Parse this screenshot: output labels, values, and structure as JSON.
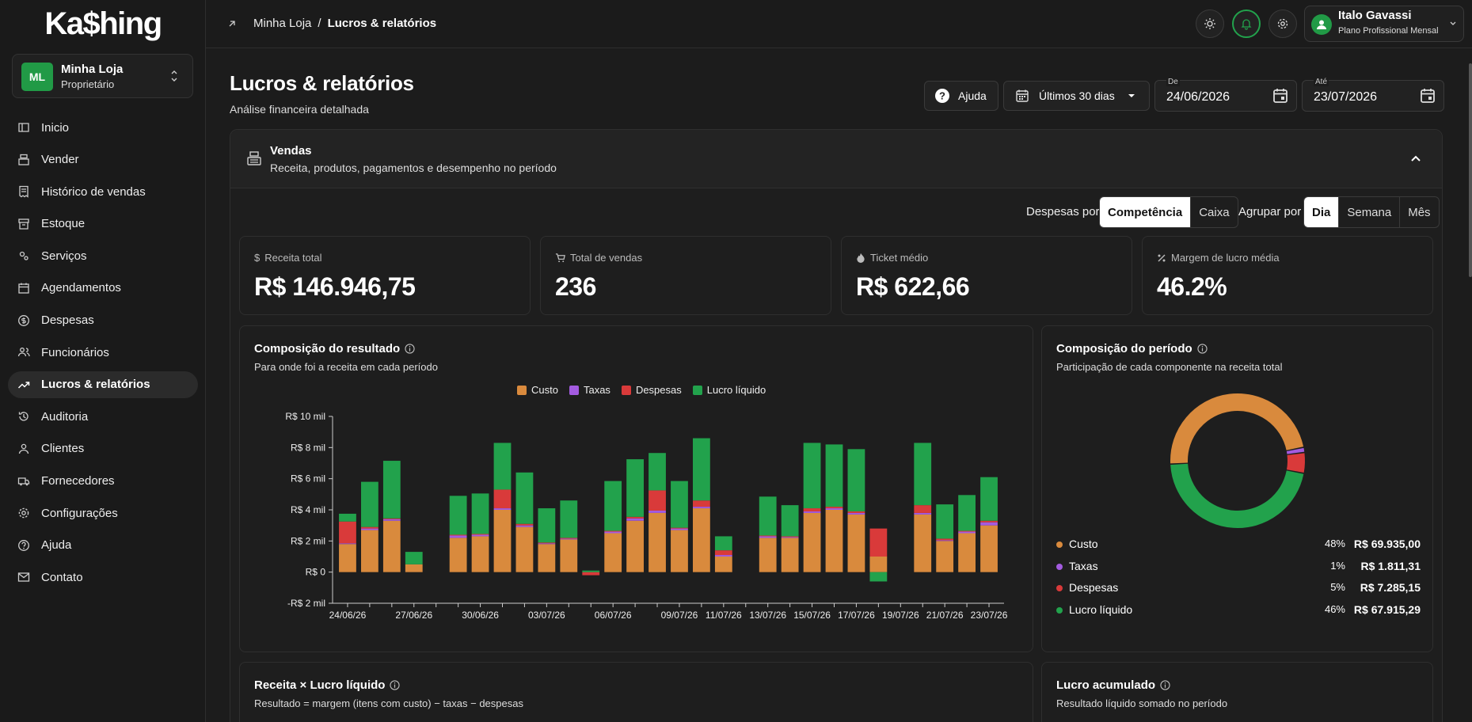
{
  "sidebar": {
    "logo": "Ka$hing",
    "store": {
      "initials": "ML",
      "name": "Minha Loja",
      "role": "Proprietário"
    },
    "items": [
      {
        "label": "Inicio",
        "icon": "home-icon",
        "active": false
      },
      {
        "label": "Vender",
        "icon": "register-icon",
        "active": false
      },
      {
        "label": "Histórico de vendas",
        "icon": "receipt-icon",
        "active": false
      },
      {
        "label": "Estoque",
        "icon": "archive-icon",
        "active": false
      },
      {
        "label": "Serviços",
        "icon": "gears-icon",
        "active": false
      },
      {
        "label": "Agendamentos",
        "icon": "calendar-icon",
        "active": false
      },
      {
        "label": "Despesas",
        "icon": "dollar-circle-icon",
        "active": false
      },
      {
        "label": "Funcionários",
        "icon": "users-icon",
        "active": false
      },
      {
        "label": "Lucros & relatórios",
        "icon": "trend-up-icon",
        "active": true
      },
      {
        "label": "Auditoria",
        "icon": "history-icon",
        "active": false
      },
      {
        "label": "Clientes",
        "icon": "people-icon",
        "active": false
      },
      {
        "label": "Fornecedores",
        "icon": "truck-icon",
        "active": false
      },
      {
        "label": "Configurações",
        "icon": "gear-icon",
        "active": false
      },
      {
        "label": "Ajuda",
        "icon": "help-icon",
        "active": false
      },
      {
        "label": "Contato",
        "icon": "mail-icon",
        "active": false
      }
    ]
  },
  "topbar": {
    "breadcrumb_root": "Minha Loja",
    "breadcrumb_sep": "/",
    "breadcrumb_current": "Lucros & relatórios",
    "user_name": "Italo Gavassi",
    "user_plan": "Plano Profissional Mensal"
  },
  "header": {
    "title": "Lucros & relatórios",
    "subtitle": "Análise financeira detalhada",
    "help_label": "Ajuda",
    "period_label": "Últimos 30 dias",
    "from_label": "De",
    "from_value": "24/06/2026",
    "to_label": "Até",
    "to_value": "23/07/2026"
  },
  "sales": {
    "title": "Vendas",
    "subtitle": "Receita, produtos, pagamentos e desempenho no período",
    "expenses_by_label": "Despesas por",
    "expenses_by_options": [
      "Competência",
      "Caixa"
    ],
    "group_by_label": "Agrupar por",
    "group_by_options": [
      "Dia",
      "Semana",
      "Mês"
    ],
    "kpis": [
      {
        "label": "Receita total",
        "value": "R$ 146.946,75",
        "icon": "dollar-icon"
      },
      {
        "label": "Total de vendas",
        "value": "236",
        "icon": "cart-icon"
      },
      {
        "label": "Ticket médio",
        "value": "R$ 622,66",
        "icon": "flame-icon"
      },
      {
        "label": "Margem de lucro média",
        "value": "46.2%",
        "icon": "percent-icon"
      }
    ]
  },
  "result_chart": {
    "title": "Composição do resultado",
    "subtitle": "Para onde foi a receita em cada período"
  },
  "period_comp": {
    "title": "Composição do período",
    "subtitle": "Participação de cada componente na receita total",
    "rows": [
      {
        "name": "Custo",
        "pct": "48%",
        "value": "R$ 69.935,00",
        "color": "#d98a3d"
      },
      {
        "name": "Taxas",
        "pct": "1%",
        "value": "R$ 1.811,31",
        "color": "#a35be0"
      },
      {
        "name": "Despesas",
        "pct": "5%",
        "value": "R$ 7.285,15",
        "color": "#d93a3a"
      },
      {
        "name": "Lucro líquido",
        "pct": "46%",
        "value": "R$ 67.915,29",
        "color": "#22a24c"
      }
    ]
  },
  "bottom_cards": {
    "left_title": "Receita × Lucro líquido",
    "left_sub": "Resultado = margem (itens com custo) − taxas − despesas",
    "right_title": "Lucro acumulado",
    "right_sub": "Resultado líquido somado no período"
  },
  "chart_data": [
    {
      "type": "bar",
      "stacked": true,
      "title": "Composição do resultado",
      "categories": [
        "24/06/26",
        "25/06/26",
        "26/06/26",
        "27/06/26",
        "28/06/26",
        "29/06/26",
        "30/06/26",
        "01/07/26",
        "02/07/26",
        "03/07/26",
        "04/07/26",
        "05/07/26",
        "06/07/26",
        "07/07/26",
        "08/07/26",
        "09/07/26",
        "10/07/26",
        "11/07/26",
        "12/07/26",
        "13/07/26",
        "14/07/26",
        "15/07/26",
        "16/07/26",
        "17/07/26",
        "18/07/26",
        "19/07/26",
        "20/07/26",
        "21/07/26",
        "22/07/26",
        "23/07/26"
      ],
      "tick_labels": [
        "24/06/26",
        "27/06/26",
        "30/06/26",
        "03/07/26",
        "06/07/26",
        "09/07/26",
        "11/07/26",
        "13/07/26",
        "15/07/26",
        "17/07/26",
        "19/07/26",
        "21/07/26",
        "23/07/26"
      ],
      "y_tick_labels": [
        "-R$ 2 mil",
        "R$ 0",
        "R$ 2 mil",
        "R$ 4 mil",
        "R$ 6 mil",
        "R$ 8 mil",
        "R$ 10 mil"
      ],
      "ylim": [
        -2000,
        10000
      ],
      "series": [
        {
          "name": "Custo",
          "color": "#d98a3d",
          "values": [
            1800,
            2700,
            3300,
            500,
            0,
            2200,
            2300,
            4000,
            2900,
            1800,
            2100,
            0,
            2500,
            3300,
            3800,
            2700,
            4100,
            1000,
            0,
            2200,
            2200,
            3800,
            4000,
            3700,
            1000,
            0,
            3700,
            2000,
            2500,
            3000
          ]
        },
        {
          "name": "Taxas",
          "color": "#a35be0",
          "values": [
            50,
            100,
            100,
            0,
            0,
            150,
            100,
            100,
            100,
            50,
            50,
            0,
            100,
            150,
            150,
            100,
            100,
            100,
            0,
            100,
            50,
            100,
            100,
            100,
            0,
            0,
            100,
            50,
            100,
            200
          ]
        },
        {
          "name": "Despesas",
          "color": "#d93a3a",
          "values": [
            1400,
            100,
            50,
            0,
            0,
            50,
            50,
            1200,
            100,
            50,
            50,
            -200,
            50,
            100,
            1300,
            50,
            400,
            300,
            0,
            50,
            50,
            200,
            100,
            100,
            1800,
            0,
            500,
            100,
            50,
            100
          ]
        },
        {
          "name": "Lucro líquido",
          "color": "#22a24c",
          "values": [
            500,
            2900,
            3700,
            800,
            0,
            2500,
            2600,
            3000,
            3300,
            2200,
            2400,
            100,
            3200,
            3700,
            2400,
            3000,
            4000,
            900,
            0,
            2500,
            2000,
            4200,
            4000,
            4000,
            -600,
            0,
            4000,
            2200,
            2300,
            2800
          ]
        }
      ],
      "grid": false,
      "legend": "top-center"
    },
    {
      "type": "pie",
      "donut": true,
      "title": "Composição do período",
      "labels": [
        "Custo",
        "Taxas",
        "Despesas",
        "Lucro líquido"
      ],
      "values": [
        69935.0,
        1811.31,
        7285.15,
        67915.29
      ],
      "colors": [
        "#d98a3d",
        "#a35be0",
        "#d93a3a",
        "#22a24c"
      ]
    }
  ]
}
